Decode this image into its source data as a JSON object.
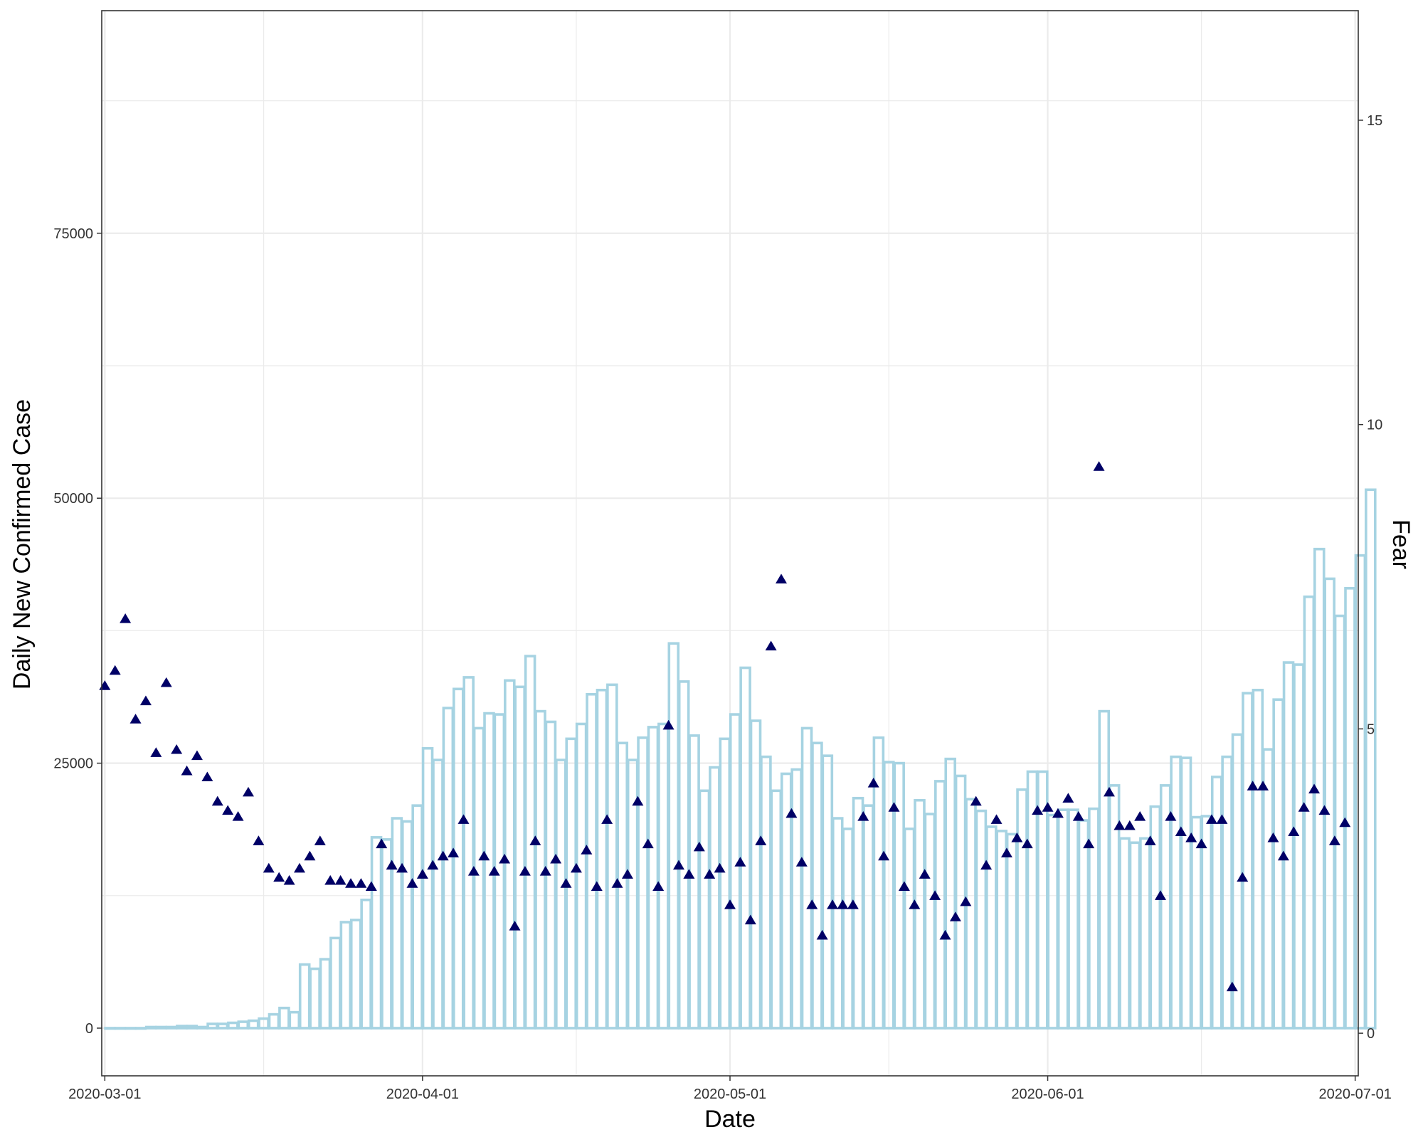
{
  "chart_data": {
    "type": "bar",
    "title": "",
    "xlabel": "Date",
    "ylabel": "Daily New Confirmed Case",
    "y2label": "Fear",
    "x_range": [
      "2020-03-01",
      "2020-07-01"
    ],
    "x_ticks": [
      "2020-03-01",
      "2020-04-01",
      "2020-05-01",
      "2020-06-01",
      "2020-07-01"
    ],
    "ylim": [
      -4500,
      96000
    ],
    "y_ticks": [
      0,
      25000,
      50000,
      75000
    ],
    "y2lim": [
      -0.7,
      16.8
    ],
    "y2_ticks": [
      0,
      5,
      10,
      15
    ],
    "grid": true,
    "legend": "none",
    "colors": {
      "bars": "#A6D3E2",
      "points": "#000066",
      "grid": "#EBEBEB",
      "frame": "#333333"
    },
    "series": [
      {
        "chart": "bar",
        "axis": "left",
        "values": [
          0,
          0,
          0,
          0,
          100,
          100,
          100,
          200,
          200,
          100,
          400,
          400,
          500,
          600,
          700,
          900,
          1300,
          1900,
          1500,
          6000,
          5600,
          6500,
          8500,
          10000,
          10200,
          12100,
          18000,
          17800,
          19800,
          19500,
          21000,
          26400,
          25300,
          30200,
          32000,
          33100,
          28300,
          29700,
          29600,
          32800,
          32200,
          35100,
          29900,
          28900,
          25300,
          27300,
          28700,
          31500,
          31900,
          32400,
          26900,
          25300,
          27400,
          28400,
          28700,
          36300,
          32700,
          27600,
          22400,
          24600,
          27300,
          29600,
          34000,
          29000,
          25600,
          22400,
          24000,
          24400,
          28300,
          26900,
          25700,
          19800,
          18800,
          21700,
          21000,
          27400,
          25100,
          25000,
          18800,
          21500,
          20200,
          23300,
          25400,
          23800,
          21600,
          20500,
          19000,
          18600,
          18300,
          22500,
          24200,
          24200,
          20100,
          20600,
          20600,
          19600,
          20700,
          29900,
          22900,
          17900,
          17500,
          17900,
          20900,
          22900,
          25600,
          25500,
          19900,
          20000,
          23700,
          25600,
          27700,
          31600,
          31900,
          26300,
          31000,
          34500,
          34300,
          40700,
          45200,
          42400,
          38900,
          41500,
          44600,
          50800
        ]
      },
      {
        "chart": "scatter",
        "axis": "right",
        "marker": "triangle",
        "values": [
          5.7,
          5.95,
          6.8,
          5.15,
          5.45,
          4.6,
          5.75,
          4.65,
          4.3,
          4.55,
          4.2,
          3.8,
          3.65,
          3.55,
          3.95,
          3.15,
          2.7,
          2.55,
          2.5,
          2.7,
          2.9,
          3.15,
          2.5,
          2.5,
          2.45,
          2.45,
          2.4,
          3.1,
          2.75,
          2.7,
          2.45,
          2.6,
          2.75,
          2.9,
          2.95,
          3.5,
          2.65,
          2.9,
          2.65,
          2.85,
          1.75,
          2.65,
          3.15,
          2.65,
          2.85,
          2.45,
          2.7,
          3.0,
          2.4,
          3.5,
          2.45,
          2.6,
          3.8,
          3.1,
          2.4,
          5.05,
          2.75,
          2.6,
          3.05,
          2.6,
          2.7,
          2.1,
          2.8,
          1.85,
          3.15,
          6.35,
          7.45,
          3.6,
          2.8,
          2.1,
          1.6,
          2.1,
          2.1,
          2.1,
          3.55,
          4.1,
          2.9,
          3.7,
          2.4,
          2.1,
          2.6,
          2.25,
          1.6,
          1.9,
          2.15,
          3.8,
          2.75,
          3.5,
          2.95,
          3.2,
          3.1,
          3.65,
          3.7,
          3.6,
          3.85,
          3.55,
          3.1,
          9.3,
          3.95,
          3.4,
          3.4,
          3.55,
          3.15,
          2.25,
          3.55,
          3.3,
          3.2,
          3.1,
          3.5,
          3.5,
          0.75,
          2.55,
          4.05,
          4.05,
          3.2,
          2.9,
          3.3,
          3.7,
          4.0,
          3.65,
          3.15,
          3.45
        ]
      }
    ]
  }
}
